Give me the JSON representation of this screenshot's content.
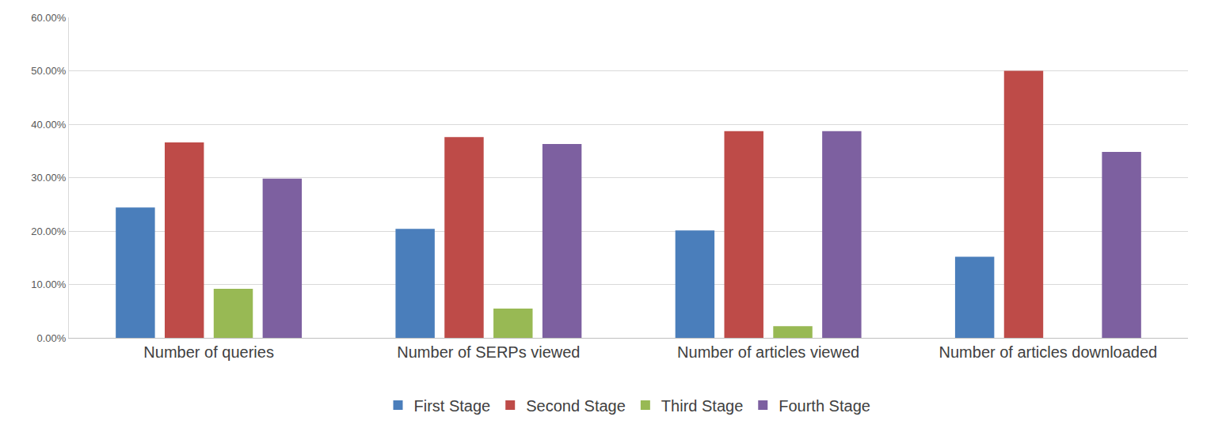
{
  "chart_data": {
    "type": "bar",
    "categories": [
      "Number of queries",
      "Number of SERPs viewed",
      "Number of articles viewed",
      "Number of articles downloaded"
    ],
    "series": [
      {
        "name": "First Stage",
        "color": "#4a7ebb",
        "values": [
          24.4,
          20.4,
          20.1,
          15.2
        ]
      },
      {
        "name": "Second Stage",
        "color": "#be4b48",
        "values": [
          36.6,
          37.6,
          38.7,
          50.0
        ]
      },
      {
        "name": "Third Stage",
        "color": "#98b954",
        "values": [
          9.2,
          5.5,
          2.2,
          0
        ]
      },
      {
        "name": "Fourth Stage",
        "color": "#7d60a0",
        "values": [
          29.8,
          36.3,
          38.7,
          34.8
        ]
      }
    ],
    "ylim": [
      0,
      60
    ],
    "yticks": [
      {
        "value": 0,
        "label": "0.00%"
      },
      {
        "value": 10,
        "label": "10.00%"
      },
      {
        "value": 20,
        "label": "20.00%"
      },
      {
        "value": 30,
        "label": "30.00%"
      },
      {
        "value": 40,
        "label": "40.00%"
      },
      {
        "value": 50,
        "label": "50.00%"
      },
      {
        "value": 60,
        "label": "60.00%"
      }
    ],
    "grid": true,
    "legend": "bottom"
  }
}
